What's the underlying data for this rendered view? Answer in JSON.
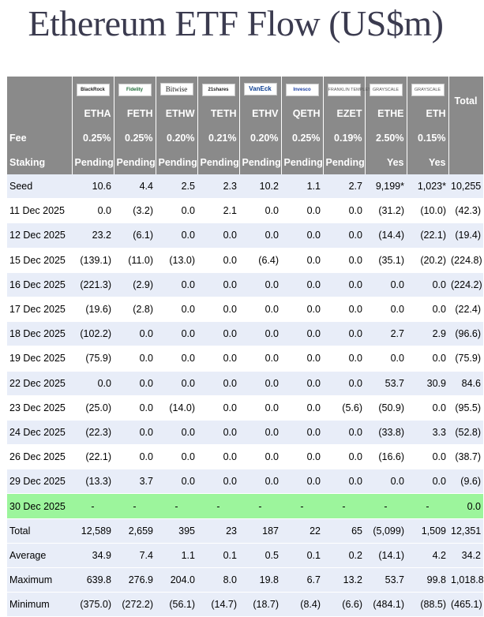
{
  "title": "Ethereum ETF Flow (US$m)",
  "columns": [
    {
      "logo": "BlackRock",
      "ticker": "ETHA",
      "fee": "0.25%",
      "staking": "Pending"
    },
    {
      "logo": "Fidelity",
      "ticker": "FETH",
      "fee": "0.25%",
      "staking": "Pending"
    },
    {
      "logo": "Bitwise",
      "ticker": "ETHW",
      "fee": "0.20%",
      "staking": "Pending"
    },
    {
      "logo": "21shares",
      "ticker": "TETH",
      "fee": "0.21%",
      "staking": "Pending"
    },
    {
      "logo": "VanEck",
      "ticker": "ETHV",
      "fee": "0.20%",
      "staking": "Pending"
    },
    {
      "logo": "Invesco",
      "ticker": "QETH",
      "fee": "0.25%",
      "staking": "Pending"
    },
    {
      "logo": "FRANKLIN TEMPLETON",
      "ticker": "EZET",
      "fee": "0.19%",
      "staking": "Pending"
    },
    {
      "logo": "GRAYSCALE",
      "ticker": "ETHE",
      "fee": "2.50%",
      "staking": "Yes"
    },
    {
      "logo": "GRAYSCALE",
      "ticker": "ETH",
      "fee": "0.15%",
      "staking": "Yes"
    }
  ],
  "total_label": "Total",
  "fee_label": "Fee",
  "staking_label": "Staking",
  "rows": [
    {
      "label": "Seed",
      "cls": "alt",
      "values": [
        "10.6",
        "4.4",
        "2.5",
        "2.3",
        "10.2",
        "1.1",
        "2.7",
        "9,199*",
        "1,023*",
        "10,255"
      ]
    },
    {
      "label": "11 Dec 2025",
      "cls": "plain",
      "values": [
        "0.0",
        "(3.2)",
        "0.0",
        "2.1",
        "0.0",
        "0.0",
        "0.0",
        "(31.2)",
        "(10.0)",
        "(42.3)"
      ]
    },
    {
      "label": "12 Dec 2025",
      "cls": "alt",
      "values": [
        "23.2",
        "(6.1)",
        "0.0",
        "0.0",
        "0.0",
        "0.0",
        "0.0",
        "(14.4)",
        "(22.1)",
        "(19.4)"
      ]
    },
    {
      "label": "15 Dec 2025",
      "cls": "plain",
      "values": [
        "(139.1)",
        "(11.0)",
        "(13.0)",
        "0.0",
        "(6.4)",
        "0.0",
        "0.0",
        "(35.1)",
        "(20.2)",
        "(224.8)"
      ]
    },
    {
      "label": "16 Dec 2025",
      "cls": "alt",
      "values": [
        "(221.3)",
        "(2.9)",
        "0.0",
        "0.0",
        "0.0",
        "0.0",
        "0.0",
        "0.0",
        "0.0",
        "(224.2)"
      ]
    },
    {
      "label": "17 Dec 2025",
      "cls": "plain",
      "values": [
        "(19.6)",
        "(2.8)",
        "0.0",
        "0.0",
        "0.0",
        "0.0",
        "0.0",
        "0.0",
        "0.0",
        "(22.4)"
      ]
    },
    {
      "label": "18 Dec 2025",
      "cls": "alt",
      "values": [
        "(102.2)",
        "0.0",
        "0.0",
        "0.0",
        "0.0",
        "0.0",
        "0.0",
        "2.7",
        "2.9",
        "(96.6)"
      ]
    },
    {
      "label": "19 Dec 2025",
      "cls": "plain",
      "values": [
        "(75.9)",
        "0.0",
        "0.0",
        "0.0",
        "0.0",
        "0.0",
        "0.0",
        "0.0",
        "0.0",
        "(75.9)"
      ]
    },
    {
      "label": "22 Dec 2025",
      "cls": "alt",
      "values": [
        "0.0",
        "0.0",
        "0.0",
        "0.0",
        "0.0",
        "0.0",
        "0.0",
        "53.7",
        "30.9",
        "84.6"
      ]
    },
    {
      "label": "23 Dec 2025",
      "cls": "plain",
      "values": [
        "(25.0)",
        "0.0",
        "(14.0)",
        "0.0",
        "0.0",
        "0.0",
        "(5.6)",
        "(50.9)",
        "0.0",
        "(95.5)"
      ]
    },
    {
      "label": "24 Dec 2025",
      "cls": "alt",
      "values": [
        "(22.3)",
        "0.0",
        "0.0",
        "0.0",
        "0.0",
        "0.0",
        "0.0",
        "(33.8)",
        "3.3",
        "(52.8)"
      ]
    },
    {
      "label": "26 Dec 2025",
      "cls": "plain",
      "values": [
        "(22.1)",
        "0.0",
        "0.0",
        "0.0",
        "0.0",
        "0.0",
        "0.0",
        "(16.6)",
        "0.0",
        "(38.7)"
      ]
    },
    {
      "label": "29 Dec 2025",
      "cls": "alt",
      "values": [
        "(13.3)",
        "3.7",
        "0.0",
        "0.0",
        "0.0",
        "0.0",
        "0.0",
        "0.0",
        "0.0",
        "(9.6)"
      ]
    },
    {
      "label": "30 Dec 2025",
      "cls": "hl",
      "values": [
        "-",
        "-",
        "-",
        "-",
        "-",
        "-",
        "-",
        "-",
        "-",
        "0.0"
      ]
    },
    {
      "label": "Total",
      "cls": "stat",
      "values": [
        "12,589",
        "2,659",
        "395",
        "23",
        "187",
        "22",
        "65",
        "(5,099)",
        "1,509",
        "12,351"
      ]
    },
    {
      "label": "Average",
      "cls": "stat",
      "values": [
        "34.9",
        "7.4",
        "1.1",
        "0.1",
        "0.5",
        "0.1",
        "0.2",
        "(14.1)",
        "4.2",
        "34.2"
      ]
    },
    {
      "label": "Maximum",
      "cls": "stat",
      "values": [
        "639.8",
        "276.9",
        "204.0",
        "8.0",
        "19.8",
        "6.7",
        "13.2",
        "53.7",
        "99.8",
        "1,018.8"
      ]
    },
    {
      "label": "Minimum",
      "cls": "stat",
      "values": [
        "(375.0)",
        "(272.2)",
        "(56.1)",
        "(14.7)",
        "(18.7)",
        "(8.4)",
        "(6.6)",
        "(484.1)",
        "(88.5)",
        "(465.1)"
      ]
    }
  ],
  "colors": {
    "header_bg": "#8a8a8a",
    "row_alt": "#e8edf8",
    "highlight": "#9cf59c",
    "negative": "#e60000"
  }
}
